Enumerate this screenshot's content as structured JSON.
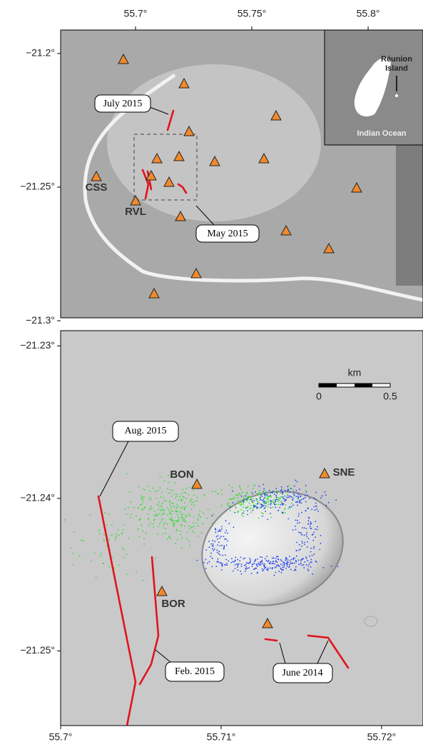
{
  "top_map": {
    "xlim": [
      55.6678,
      55.8236
    ],
    "ylim": [
      -21.2989,
      -21.1912
    ],
    "lon_ticks": [
      {
        "value": 55.7,
        "label": "55.7°"
      },
      {
        "value": 55.75,
        "label": "55.75°"
      },
      {
        "value": 55.8,
        "label": "55.8°"
      }
    ],
    "lat_ticks": [
      {
        "value": -21.2,
        "label": "−21.2°"
      },
      {
        "value": -21.25,
        "label": "−21.25°"
      },
      {
        "value": -21.3,
        "label": "−21.3°"
      }
    ],
    "stations": [
      "CSS",
      "RVL"
    ],
    "callouts": [
      "July 2015",
      "May 2015"
    ],
    "inset": {
      "island": [
        "Réunion",
        "Island"
      ],
      "ocean": "Indian Ocean"
    }
  },
  "bottom_map": {
    "xlim": [
      55.7,
      55.72258
    ],
    "ylim": [
      -21.2549,
      -21.229
    ],
    "lon_ticks": [
      {
        "value": 55.7,
        "label": "55.7°"
      },
      {
        "value": 55.71,
        "label": "55.71°"
      },
      {
        "value": 55.72,
        "label": "55.72°"
      }
    ],
    "lat_ticks": [
      {
        "value": -21.23,
        "label": "−21.23°"
      },
      {
        "value": -21.24,
        "label": "−21.24°"
      },
      {
        "value": -21.25,
        "label": "−21.25°"
      }
    ],
    "stations": [
      "BON",
      "SNE",
      "BOR"
    ],
    "callouts": [
      "Aug. 2015",
      "Feb. 2015",
      "June 2014"
    ],
    "scale_bar": {
      "unit": "km",
      "ticks": [
        0,
        0.5
      ]
    }
  }
}
